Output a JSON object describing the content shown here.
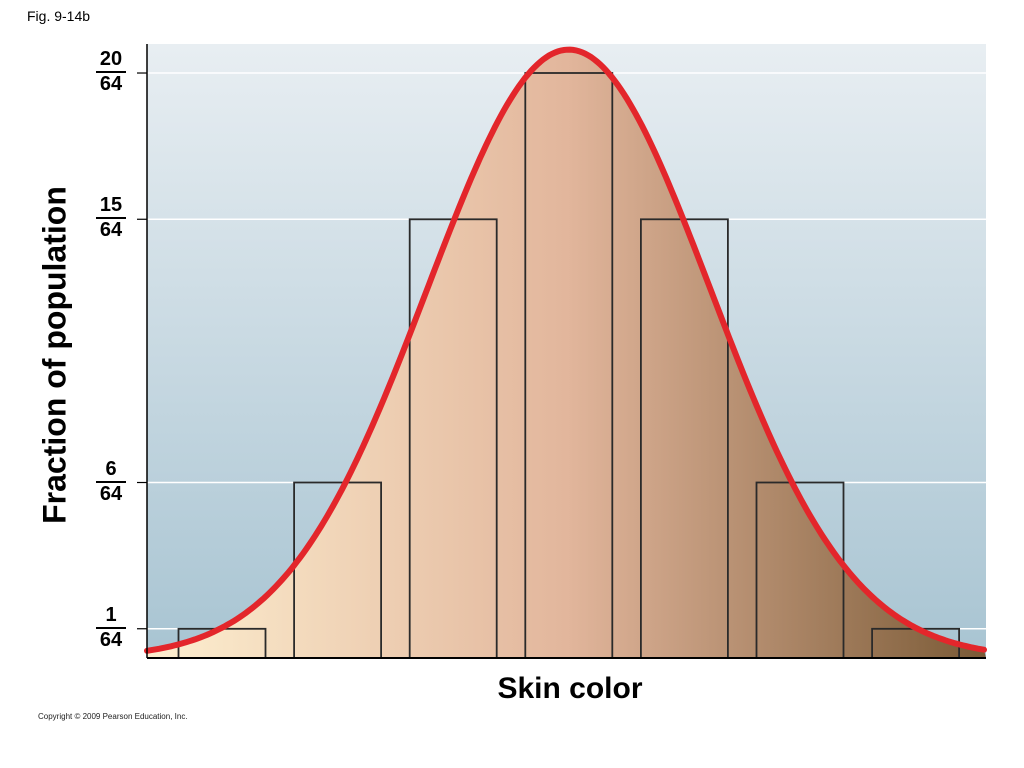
{
  "figure_label": "Fig. 9-14b",
  "copyright": "Copyright © 2009 Pearson Education, Inc.",
  "chart_data": {
    "type": "bar",
    "title": "",
    "xlabel": "Skin color",
    "ylabel": "Fraction of population",
    "categories": [
      "",
      "",
      "",
      "",
      "",
      "",
      ""
    ],
    "values": [
      0.015625,
      0.09375,
      0.234375,
      0.3125,
      0.234375,
      0.09375,
      0.015625
    ],
    "yticks": [
      {
        "numerator": "1",
        "denominator": "64",
        "value": 0.015625
      },
      {
        "numerator": "6",
        "denominator": "64",
        "value": 0.09375
      },
      {
        "numerator": "15",
        "denominator": "64",
        "value": 0.234375
      },
      {
        "numerator": "20",
        "denominator": "64",
        "value": 0.3125
      }
    ],
    "ylim": [
      0,
      0.328
    ],
    "grid": true,
    "overlay_curve": "normal distribution",
    "colors": {
      "curve": "#e3262b",
      "bar_outline": "#2a2a2a",
      "background_top": "#e8eef2",
      "background_bottom": "#a8c4d2",
      "skin_light": "#fdefd0",
      "skin_mid": "#e2b69c",
      "skin_dark": "#7a5a36"
    }
  }
}
